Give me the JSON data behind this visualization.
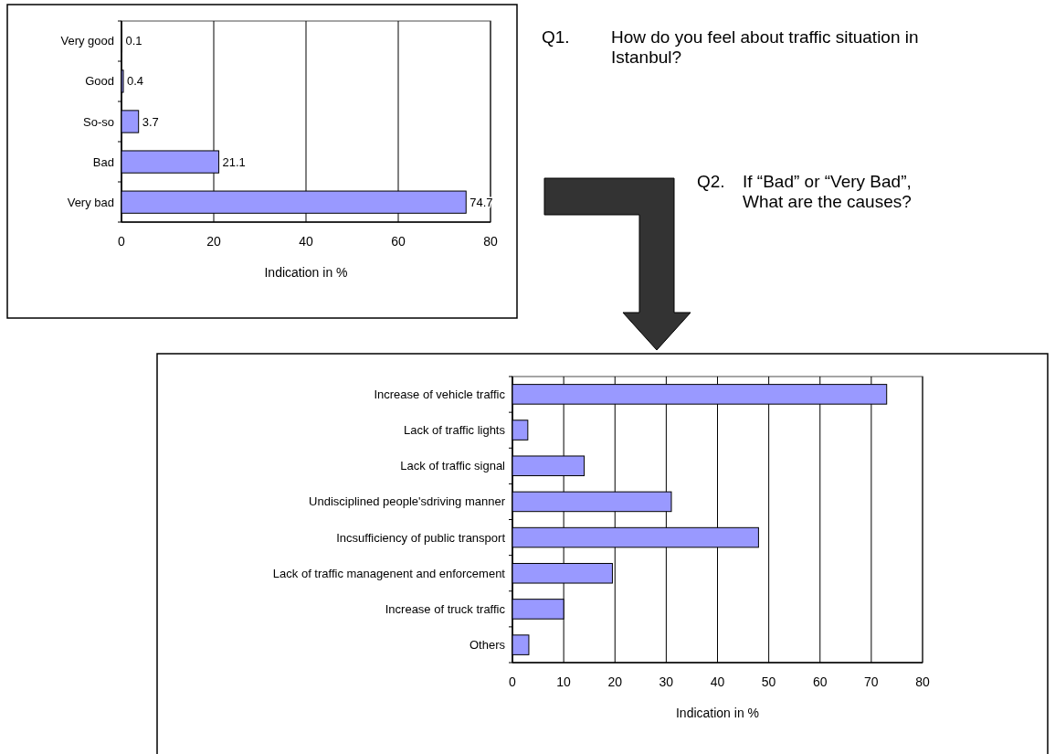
{
  "chart_data": [
    {
      "type": "bar",
      "orientation": "horizontal",
      "title": "Q1. How do you feel about traffic situation in Istanbul?",
      "xlabel": "Indication in %",
      "categories": [
        "Very good",
        "Good",
        "So-so",
        "Bad",
        "Very bad"
      ],
      "values": [
        0.1,
        0.4,
        3.7,
        21.1,
        74.7
      ],
      "color": "#9999ff",
      "data_labels": true,
      "xlim": [
        0,
        80
      ],
      "xticks": [
        0,
        20,
        40,
        60,
        80
      ],
      "grid": "x"
    },
    {
      "type": "bar",
      "orientation": "horizontal",
      "title": "Q2. If “Bad” or “Very Bad”, What are the causes?",
      "xlabel": "Indication in %",
      "categories": [
        "Increase of vehicle traffic",
        "Lack of traffic lights",
        "Lack of traffic signal",
        "Undisciplined people'sdriving manner",
        "Incsufficiency of public transport",
        "Lack of traffic managenent and enforcement",
        "Increase of truck traffic",
        "Others"
      ],
      "values": [
        73,
        3,
        14,
        31,
        48,
        19.5,
        10,
        3.2
      ],
      "color": "#9999ff",
      "xlim": [
        0,
        80
      ],
      "xticks": [
        0,
        10,
        20,
        30,
        40,
        50,
        60,
        70,
        80
      ],
      "grid": "x"
    }
  ]
}
